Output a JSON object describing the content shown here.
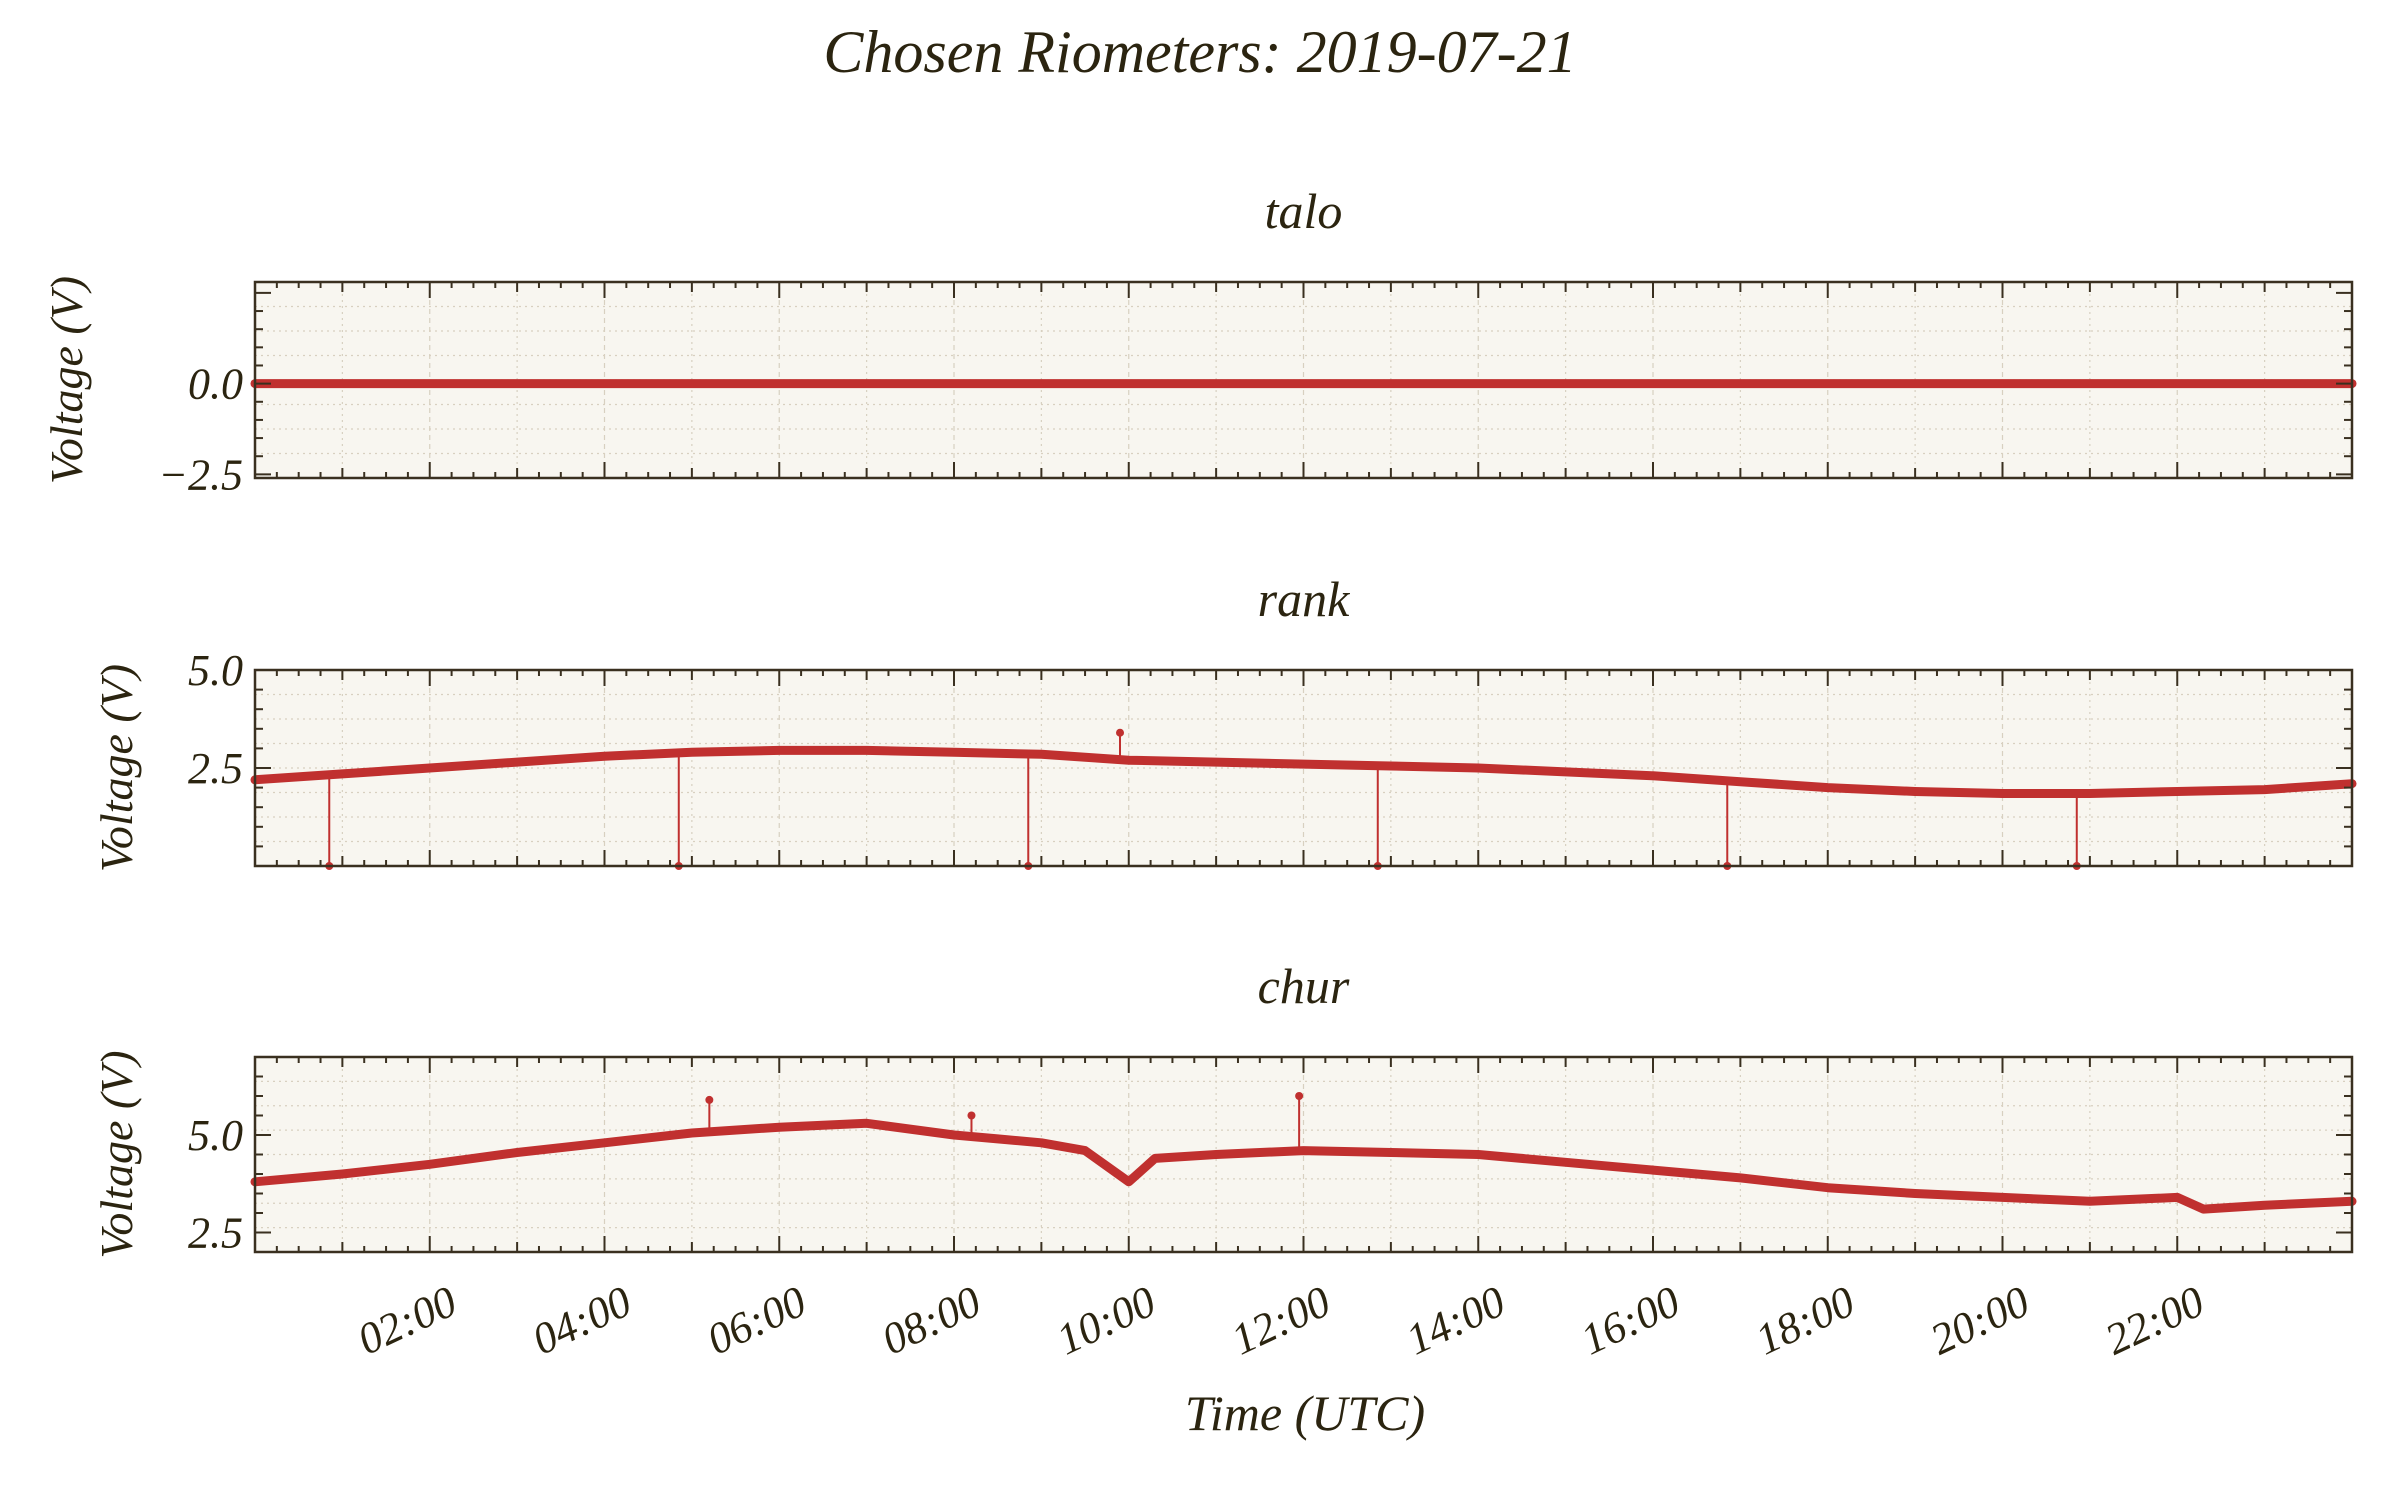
{
  "figure": {
    "title": "Chosen Riometers: 2019-07-21",
    "xlabel": "Time (UTC)",
    "ylabel": "Voltage (V)",
    "colors": {
      "line": "#c0302f",
      "panel_bg": "#f8f6f0",
      "grid": "#d8d0c0",
      "axes": "#3a3020",
      "text": "#2b2410"
    }
  },
  "chart_data": [
    {
      "type": "line",
      "title": "talo",
      "ylabel": "Voltage (V)",
      "xlabel": "",
      "xlim": [
        0,
        24
      ],
      "ylim": [
        -2.6,
        2.8
      ],
      "yticks": [
        {
          "value": 0.0,
          "label": "0.0"
        },
        {
          "value": -2.5,
          "label": "−2.5"
        }
      ],
      "xtick_labels_shown": false,
      "grid": true,
      "series": [
        {
          "x": [
            0,
            2,
            4,
            6,
            8,
            10,
            12,
            14,
            16,
            18,
            20,
            22,
            24
          ],
          "y": [
            0,
            0,
            0,
            0,
            0,
            0,
            0,
            0,
            0,
            0,
            0,
            0,
            0
          ]
        }
      ],
      "spikes": []
    },
    {
      "type": "line",
      "title": "rank",
      "ylabel": "Voltage (V)",
      "xlabel": "",
      "xlim": [
        0,
        24
      ],
      "ylim": [
        0.0,
        5.0
      ],
      "yticks": [
        {
          "value": 5.0,
          "label": "5.0"
        },
        {
          "value": 2.5,
          "label": "2.5"
        }
      ],
      "xtick_labels_shown": false,
      "grid": true,
      "series": [
        {
          "x": [
            0,
            1,
            2,
            3,
            4,
            5,
            6,
            7,
            8,
            9,
            10,
            11,
            12,
            13,
            14,
            15,
            16,
            17,
            18,
            19,
            20,
            21,
            22,
            23,
            24
          ],
          "y": [
            2.2,
            2.35,
            2.5,
            2.65,
            2.8,
            2.9,
            2.95,
            2.95,
            2.9,
            2.85,
            2.7,
            2.65,
            2.6,
            2.55,
            2.5,
            2.4,
            2.3,
            2.15,
            2.0,
            1.9,
            1.85,
            1.85,
            1.9,
            1.95,
            2.1
          ]
        }
      ],
      "spikes": [
        {
          "x": 0.85,
          "y": 0.0
        },
        {
          "x": 4.85,
          "y": 0.0
        },
        {
          "x": 8.85,
          "y": 0.0
        },
        {
          "x": 12.85,
          "y": 0.0
        },
        {
          "x": 16.85,
          "y": 0.0
        },
        {
          "x": 20.85,
          "y": 0.0
        },
        {
          "x": 9.9,
          "y": 3.4
        }
      ]
    },
    {
      "type": "line",
      "title": "chur",
      "ylabel": "Voltage (V)",
      "xlabel": "Time (UTC)",
      "xlim": [
        0,
        24
      ],
      "ylim": [
        2.0,
        7.0
      ],
      "yticks": [
        {
          "value": 5.0,
          "label": "5.0"
        },
        {
          "value": 2.5,
          "label": "2.5"
        }
      ],
      "xtick_labels_shown": true,
      "xticks": [
        "02:00",
        "04:00",
        "06:00",
        "08:00",
        "10:00",
        "12:00",
        "14:00",
        "16:00",
        "18:00",
        "20:00",
        "22:00"
      ],
      "grid": true,
      "series": [
        {
          "x": [
            0,
            1,
            2,
            3,
            4,
            5,
            6,
            7,
            8,
            8.5,
            9,
            9.5,
            10,
            10.3,
            11,
            12,
            13,
            14,
            15,
            16,
            17,
            18,
            19,
            20,
            21,
            22,
            22.3,
            23,
            24
          ],
          "y": [
            3.8,
            4.0,
            4.25,
            4.55,
            4.8,
            5.05,
            5.2,
            5.3,
            5.0,
            4.9,
            4.8,
            4.6,
            3.8,
            4.4,
            4.5,
            4.6,
            4.55,
            4.5,
            4.3,
            4.1,
            3.9,
            3.65,
            3.5,
            3.4,
            3.3,
            3.4,
            3.1,
            3.2,
            3.3
          ]
        }
      ],
      "spikes": [
        {
          "x": 5.2,
          "y": 5.9
        },
        {
          "x": 8.2,
          "y": 5.5
        },
        {
          "x": 11.95,
          "y": 6.0
        }
      ]
    }
  ]
}
